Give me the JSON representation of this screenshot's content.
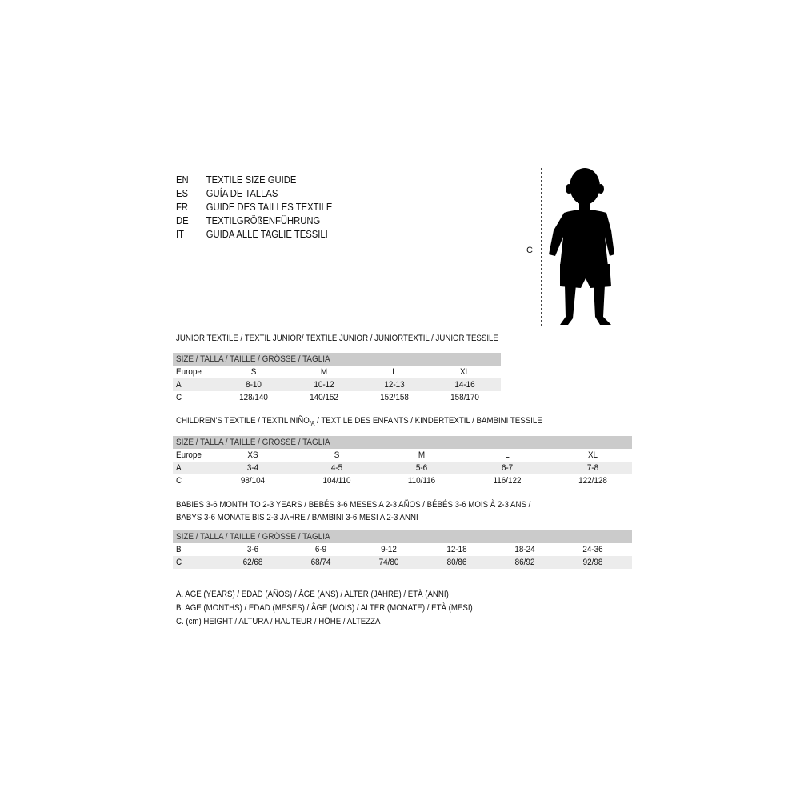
{
  "guide": [
    {
      "code": "EN",
      "title": "TEXTILE SIZE GUIDE"
    },
    {
      "code": "ES",
      "title": "GUÍA DE TALLAS"
    },
    {
      "code": "FR",
      "title": "GUIDE DES TAILLES TEXTILE"
    },
    {
      "code": "DE",
      "title": "TEXTILGRÖßENFÜHRUNG"
    },
    {
      "code": "IT",
      "title": "GUIDA ALLE TAGLIE TESSILI"
    }
  ],
  "figure_label": "C",
  "size_header": "SIZE / TALLA / TAILLE / GRÖSSE / TAGLIA",
  "junior": {
    "title": "JUNIOR TEXTILE / TEXTIL JUNIOR/ TEXTILE JUNIOR / JUNIORTEXTIL / JUNIOR TESSILE",
    "rows": [
      {
        "label": "Europe",
        "cells": [
          "S",
          "M",
          "L",
          "XL"
        ]
      },
      {
        "label": "A",
        "cells": [
          "8-10",
          "10-12",
          "12-13",
          "14-16"
        ]
      },
      {
        "label": "C",
        "cells": [
          "128/140",
          "140/152",
          "152/158",
          "158/170"
        ]
      }
    ]
  },
  "children": {
    "title_a": "CHILDREN'S TEXTILE / TEXTIL NIÑO",
    "title_sub": "/A",
    "title_b": " / TEXTILE DES ENFANTS / KINDERTEXTIL / BAMBINI TESSILE",
    "rows": [
      {
        "label": "Europe",
        "cells": [
          "XS",
          "S",
          "M",
          "L",
          "XL"
        ]
      },
      {
        "label": "A",
        "cells": [
          "3-4",
          "4-5",
          "5-6",
          "6-7",
          "7-8"
        ]
      },
      {
        "label": "C",
        "cells": [
          "98/104",
          "104/110",
          "110/116",
          "116/122",
          "122/128"
        ]
      }
    ]
  },
  "babies": {
    "title_line1": "BABIES 3-6 MONTH TO 2-3 YEARS / BEBÉS 3-6 MESES A 2-3 AÑOS / BÉBÉS 3-6 MOIS À 2-3 ANS /",
    "title_line2": "BABYS 3-6 MONATE BIS 2-3 JAHRE / BAMBINI 3-6 MESI A 2-3 ANNI",
    "rows": [
      {
        "label": "B",
        "cells": [
          "3-6",
          "6-9",
          "9-12",
          "12-18",
          "18-24",
          "24-36"
        ]
      },
      {
        "label": "C",
        "cells": [
          "62/68",
          "68/74",
          "74/80",
          "80/86",
          "86/92",
          "92/98"
        ]
      }
    ]
  },
  "legend": [
    "A. AGE (YEARS) / EDAD (AÑOS) / ÂGE (ANS) / ALTER (JAHRE) / ETÀ (ANNI)",
    "B. AGE (MONTHS) / EDAD (MESES) / ÂGE (MOIS) / ALTER (MONATE) / ETÀ (MESI)",
    "C. (cm) HEIGHT / ALTURA / HAUTEUR / HÖHE / ALTEZZA"
  ]
}
